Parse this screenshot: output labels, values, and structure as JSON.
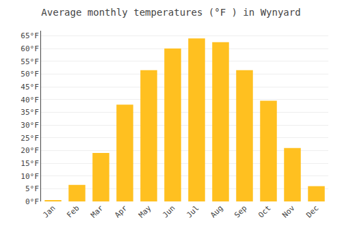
{
  "chart_data": {
    "type": "bar",
    "title": "Average monthly temperatures (°F ) in Wynyard",
    "categories": [
      "Jan",
      "Feb",
      "Mar",
      "Apr",
      "May",
      "Jun",
      "Jul",
      "Aug",
      "Sep",
      "Oct",
      "Nov",
      "Dec"
    ],
    "values": [
      0.5,
      6.5,
      19,
      38,
      51.5,
      60,
      64,
      62.5,
      51.5,
      39.5,
      21,
      6
    ],
    "color": "#FFC020",
    "ylim": [
      0,
      67
    ],
    "yticks": [
      {
        "value": 0,
        "label": "0°F"
      },
      {
        "value": 5,
        "label": "5°F"
      },
      {
        "value": 10,
        "label": "10°F"
      },
      {
        "value": 15,
        "label": "15°F"
      },
      {
        "value": 20,
        "label": "20°F"
      },
      {
        "value": 25,
        "label": "25°F"
      },
      {
        "value": 30,
        "label": "30°F"
      },
      {
        "value": 35,
        "label": "35°F"
      },
      {
        "value": 40,
        "label": "40°F"
      },
      {
        "value": 45,
        "label": "45°F"
      },
      {
        "value": 50,
        "label": "50°F"
      },
      {
        "value": 55,
        "label": "55°F"
      },
      {
        "value": 60,
        "label": "60°F"
      },
      {
        "value": 65,
        "label": "65°F"
      }
    ],
    "grid": true
  }
}
